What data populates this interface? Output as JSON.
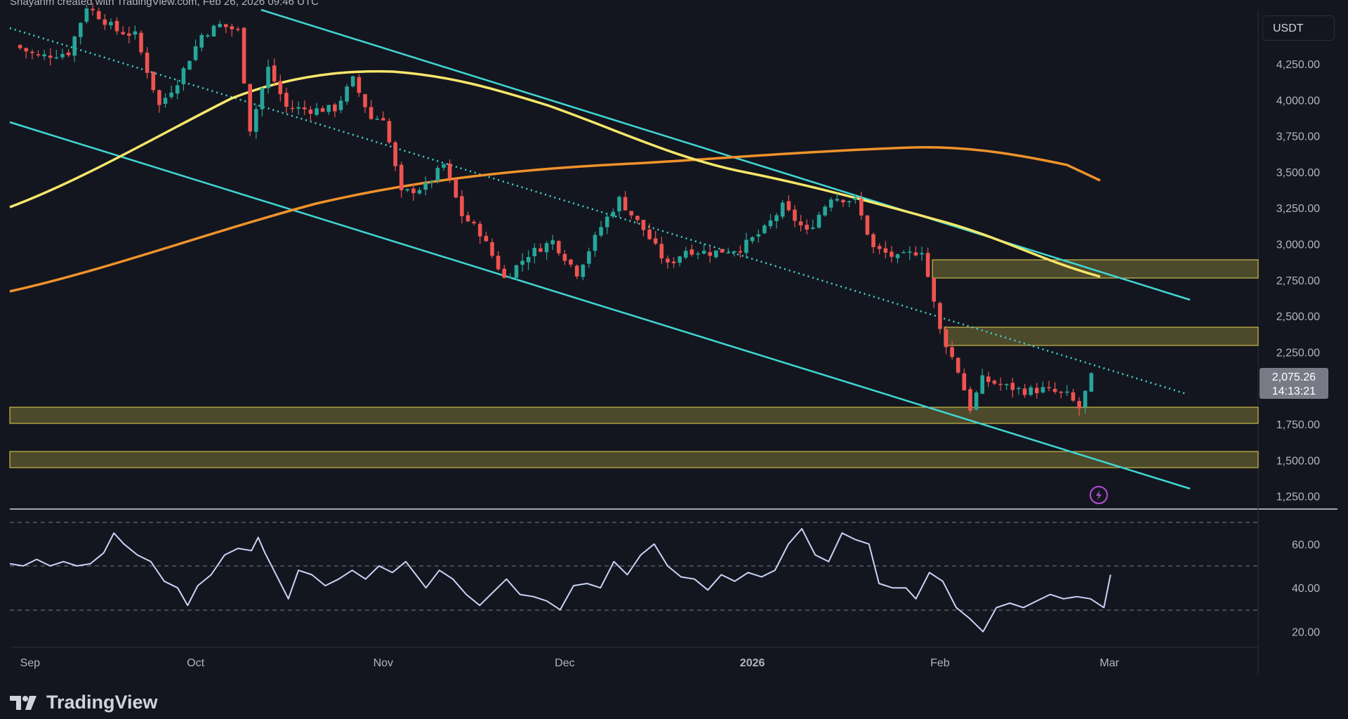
{
  "header": {
    "credit": "Shayanm created with TradingView.com, Feb 26, 2026 09:46 UTC"
  },
  "symbol_badge": "USDT",
  "price_label": {
    "price": "2,075.26",
    "countdown": "14:13:21"
  },
  "footer": {
    "brand": "TradingView"
  },
  "colors": {
    "background": "#14161f",
    "up_candle": "#26a69a",
    "down_candle": "#ef5350",
    "channel": "#3fd8d4",
    "ma_yellow": "#f7e76a",
    "ma_orange": "#f0932b",
    "zone_fill": "#4d4a2b",
    "zone_border": "#e6d650",
    "rsi_line": "#c9d3f5"
  },
  "chart_data": [
    {
      "type": "candlestick",
      "title": "",
      "quote_currency": "USDT",
      "y_ticks": [
        "4,250.00",
        "4,000.00",
        "3,750.00",
        "3,500.00",
        "3,250.00",
        "3,000.00",
        "2,750.00",
        "2,500.00",
        "2,250.00",
        "1,750.00",
        "1,500.00",
        "1,250.00"
      ],
      "x_ticks": [
        "Sep",
        "Oct",
        "Nov",
        "Dec",
        "2026",
        "Feb",
        "Mar"
      ],
      "ylim": [
        1220,
        4420
      ],
      "last_price": 2075.26,
      "close_series_approx": [
        [
          "2025-09-01",
          4380
        ],
        [
          "2025-09-05",
          4300
        ],
        [
          "2025-09-10",
          4330
        ],
        [
          "2025-09-13",
          4650
        ],
        [
          "2025-09-18",
          4480
        ],
        [
          "2025-09-21",
          4450
        ],
        [
          "2025-09-25",
          3960
        ],
        [
          "2025-09-28",
          4130
        ],
        [
          "2025-10-02",
          4450
        ],
        [
          "2025-10-05",
          4520
        ],
        [
          "2025-10-08",
          4480
        ],
        [
          "2025-10-10",
          3800
        ],
        [
          "2025-10-13",
          4220
        ],
        [
          "2025-10-16",
          3950
        ],
        [
          "2025-10-20",
          3930
        ],
        [
          "2025-10-24",
          3940
        ],
        [
          "2025-10-27",
          4140
        ],
        [
          "2025-10-30",
          3870
        ],
        [
          "2025-11-01",
          3880
        ],
        [
          "2025-11-04",
          3350
        ],
        [
          "2025-11-08",
          3400
        ],
        [
          "2025-11-11",
          3550
        ],
        [
          "2025-11-14",
          3200
        ],
        [
          "2025-11-17",
          3080
        ],
        [
          "2025-11-21",
          2760
        ],
        [
          "2025-11-25",
          2930
        ],
        [
          "2025-11-29",
          3020
        ],
        [
          "2025-12-03",
          2800
        ],
        [
          "2025-12-07",
          3120
        ],
        [
          "2025-12-10",
          3310
        ],
        [
          "2025-12-14",
          3100
        ],
        [
          "2025-12-18",
          2850
        ],
        [
          "2025-12-21",
          2960
        ],
        [
          "2025-12-25",
          2940
        ],
        [
          "2025-12-30",
          2970
        ],
        [
          "2026-01-03",
          3100
        ],
        [
          "2026-01-06",
          3260
        ],
        [
          "2026-01-10",
          3080
        ],
        [
          "2026-01-14",
          3330
        ],
        [
          "2026-01-18",
          3300
        ],
        [
          "2026-01-21",
          2970
        ],
        [
          "2026-01-25",
          2900
        ],
        [
          "2026-01-29",
          2960
        ],
        [
          "2026-02-01",
          2400
        ],
        [
          "2026-02-04",
          2120
        ],
        [
          "2026-02-06",
          1860
        ],
        [
          "2026-02-08",
          2060
        ],
        [
          "2026-02-12",
          2010
        ],
        [
          "2026-02-15",
          1980
        ],
        [
          "2026-02-18",
          1990
        ],
        [
          "2026-02-22",
          1950
        ],
        [
          "2026-02-24",
          1860
        ],
        [
          "2026-02-26",
          2075
        ]
      ],
      "overlays": {
        "moving_average_yellow_approx": [
          [
            "2025-09-01",
            3250
          ],
          [
            "2025-10-01",
            3800
          ],
          [
            "2025-10-25",
            4210
          ],
          [
            "2025-11-20",
            4140
          ],
          [
            "2025-12-25",
            3700
          ],
          [
            "2026-01-20",
            3250
          ],
          [
            "2026-02-26",
            2760
          ]
        ],
        "moving_average_orange_approx": [
          [
            "2025-09-01",
            2650
          ],
          [
            "2025-10-01",
            2980
          ],
          [
            "2025-11-01",
            3380
          ],
          [
            "2025-12-01",
            3590
          ],
          [
            "2026-01-01",
            3640
          ],
          [
            "2026-01-29",
            3670
          ],
          [
            "2026-02-26",
            3440
          ]
        ],
        "descending_channel": "upper, lower and dotted mid trendlines",
        "highlighted_zones_price": [
          [
            2760,
            2890
          ],
          [
            2290,
            2420
          ],
          [
            1750,
            1870
          ],
          [
            1440,
            1550
          ]
        ]
      }
    },
    {
      "type": "line",
      "title": "",
      "y_ticks": [
        "60.00",
        "40.00",
        "20.00"
      ],
      "ylim": [
        15,
        75
      ],
      "reference_levels": [
        70,
        50,
        30
      ],
      "series": [
        {
          "values_approx": [
            [
              0,
              51
            ],
            [
              4,
              50
            ],
            [
              8,
              53
            ],
            [
              12,
              50
            ],
            [
              16,
              52
            ],
            [
              20,
              50
            ],
            [
              24,
              51
            ],
            [
              28,
              56
            ],
            [
              31,
              65
            ],
            [
              34,
              60
            ],
            [
              38,
              55
            ],
            [
              42,
              52
            ],
            [
              46,
              43
            ],
            [
              50,
              40
            ],
            [
              53,
              32
            ],
            [
              56,
              41
            ],
            [
              60,
              46
            ],
            [
              64,
              55
            ],
            [
              68,
              58
            ],
            [
              72,
              57
            ],
            [
              74,
              63
            ],
            [
              76,
              56
            ],
            [
              80,
              44
            ],
            [
              83,
              35
            ],
            [
              86,
              48
            ],
            [
              90,
              46
            ],
            [
              94,
              41
            ],
            [
              98,
              44
            ],
            [
              102,
              48
            ],
            [
              106,
              44
            ],
            [
              110,
              50
            ],
            [
              114,
              47
            ],
            [
              118,
              52
            ],
            [
              121,
              46
            ],
            [
              124,
              40
            ],
            [
              128,
              48
            ],
            [
              132,
              44
            ],
            [
              136,
              37
            ],
            [
              140,
              32
            ],
            [
              144,
              38
            ],
            [
              148,
              44
            ],
            [
              152,
              37
            ],
            [
              156,
              36
            ],
            [
              160,
              34
            ],
            [
              164,
              30
            ],
            [
              168,
              41
            ],
            [
              172,
              42
            ],
            [
              176,
              40
            ],
            [
              180,
              52
            ],
            [
              184,
              46
            ],
            [
              188,
              55
            ],
            [
              192,
              60
            ],
            [
              196,
              50
            ],
            [
              200,
              45
            ],
            [
              204,
              44
            ],
            [
              208,
              39
            ],
            [
              212,
              46
            ],
            [
              216,
              43
            ],
            [
              220,
              47
            ],
            [
              224,
              45
            ],
            [
              228,
              48
            ],
            [
              232,
              60
            ],
            [
              236,
              67
            ],
            [
              240,
              55
            ],
            [
              244,
              52
            ],
            [
              248,
              65
            ],
            [
              252,
              62
            ],
            [
              256,
              60
            ],
            [
              259,
              42
            ],
            [
              263,
              40
            ],
            [
              267,
              40
            ],
            [
              270,
              35
            ],
            [
              274,
              47
            ],
            [
              278,
              43
            ],
            [
              282,
              31
            ],
            [
              286,
              26
            ],
            [
              290,
              20
            ],
            [
              294,
              31
            ],
            [
              298,
              33
            ],
            [
              302,
              31
            ],
            [
              306,
              34
            ],
            [
              310,
              37
            ],
            [
              314,
              35
            ],
            [
              318,
              36
            ],
            [
              322,
              35
            ],
            [
              326,
              31
            ],
            [
              328,
              46
            ]
          ]
        }
      ]
    }
  ]
}
